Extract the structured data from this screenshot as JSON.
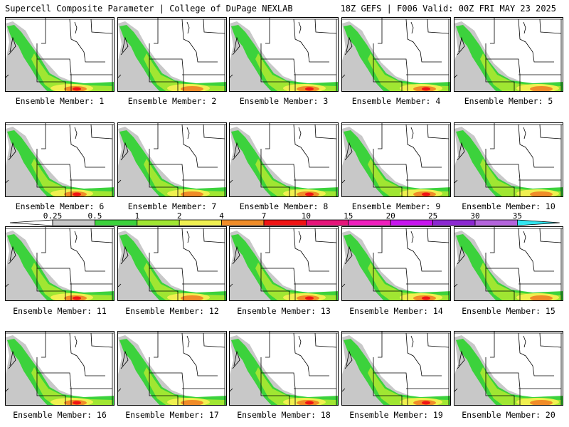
{
  "header": {
    "left": "Supercell Composite Parameter | College of DuPage NEXLAB",
    "right": "18Z GEFS | F006 Valid: 00Z FRI MAY 23 2025"
  },
  "members": [
    "Ensemble Member: 1",
    "Ensemble Member: 2",
    "Ensemble Member: 3",
    "Ensemble Member: 4",
    "Ensemble Member: 5",
    "Ensemble Member: 6",
    "Ensemble Member: 7",
    "Ensemble Member: 8",
    "Ensemble Member: 9",
    "Ensemble Member: 10",
    "Ensemble Member: 11",
    "Ensemble Member: 12",
    "Ensemble Member: 13",
    "Ensemble Member: 14",
    "Ensemble Member: 15",
    "Ensemble Member: 16",
    "Ensemble Member: 17",
    "Ensemble Member: 18",
    "Ensemble Member: 19",
    "Ensemble Member: 20"
  ],
  "colorbar": {
    "labels": [
      "0.25",
      "0.5",
      "1",
      "2",
      "4",
      "7",
      "10",
      "15",
      "20",
      "25",
      "30",
      "35"
    ],
    "colors": [
      "#c8c8c8",
      "#3cd23c",
      "#a0e632",
      "#f0f050",
      "#f08c28",
      "#f01414",
      "#e6147a",
      "#f01ebe",
      "#c814f0",
      "#8c28d2",
      "#b464dc",
      "#32e6f0"
    ]
  },
  "field_colors": {
    "gray": "#c8c8c8",
    "green": "#3cd23c",
    "lime": "#a0e632",
    "yellow": "#f0f050",
    "orange": "#f08c28",
    "red": "#f01414",
    "magenta": "#e6147a"
  }
}
